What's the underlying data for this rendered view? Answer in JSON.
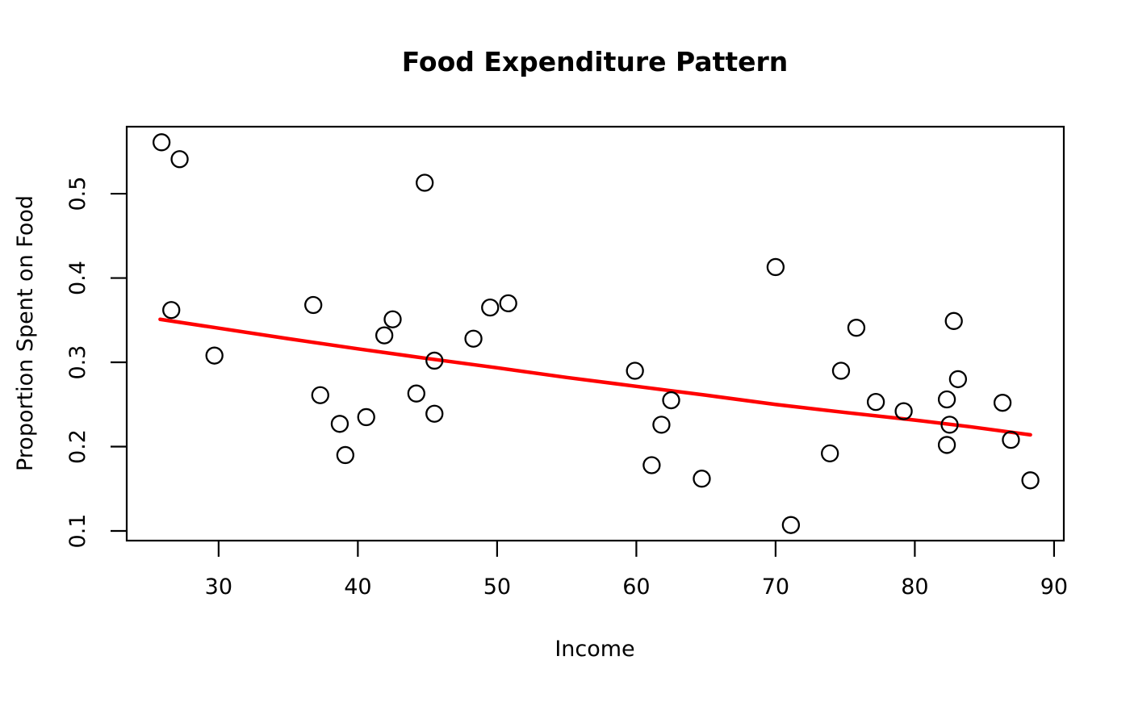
{
  "figure": {
    "background_color": "#FFFFFF",
    "foreground_color": "#000000",
    "accent_color": "#FF0000"
  },
  "chart_data": {
    "type": "scatter",
    "title": "Food Expenditure Pattern",
    "xlabel": "Income",
    "ylabel": "Proportion Spent on Food",
    "xlim": [
      23.4,
      90.7
    ],
    "ylim": [
      0.0885,
      0.5795
    ],
    "x_ticks": [
      30,
      40,
      50,
      60,
      70,
      80,
      90
    ],
    "y_ticks": [
      0.1,
      0.2,
      0.3,
      0.4,
      0.5
    ],
    "grid": false,
    "legend": "none",
    "marker": {
      "shape": "open-circle",
      "stroke_color": "#000000"
    },
    "points": [
      [
        25.9,
        0.561
      ],
      [
        26.6,
        0.362
      ],
      [
        27.2,
        0.541
      ],
      [
        29.7,
        0.308
      ],
      [
        36.8,
        0.368
      ],
      [
        37.3,
        0.261
      ],
      [
        38.7,
        0.227
      ],
      [
        39.1,
        0.19
      ],
      [
        40.6,
        0.235
      ],
      [
        41.9,
        0.332
      ],
      [
        42.5,
        0.351
      ],
      [
        44.2,
        0.263
      ],
      [
        44.8,
        0.513
      ],
      [
        45.5,
        0.302
      ],
      [
        45.5,
        0.239
      ],
      [
        48.3,
        0.328
      ],
      [
        49.5,
        0.365
      ],
      [
        50.8,
        0.37
      ],
      [
        59.9,
        0.29
      ],
      [
        61.1,
        0.178
      ],
      [
        61.8,
        0.226
      ],
      [
        62.5,
        0.255
      ],
      [
        64.7,
        0.162
      ],
      [
        70.0,
        0.413
      ],
      [
        71.1,
        0.107
      ],
      [
        73.9,
        0.192
      ],
      [
        74.7,
        0.29
      ],
      [
        75.8,
        0.341
      ],
      [
        77.2,
        0.253
      ],
      [
        79.2,
        0.242
      ],
      [
        82.3,
        0.256
      ],
      [
        82.3,
        0.202
      ],
      [
        82.5,
        0.226
      ],
      [
        82.8,
        0.349
      ],
      [
        83.1,
        0.28
      ],
      [
        86.3,
        0.252
      ],
      [
        86.9,
        0.208
      ],
      [
        88.3,
        0.16
      ]
    ],
    "trend_line": {
      "name": "smooth-fit",
      "color": "#FF0000",
      "points": [
        [
          25.8,
          0.351
        ],
        [
          30.0,
          0.3405
        ],
        [
          35.0,
          0.328
        ],
        [
          40.0,
          0.316
        ],
        [
          45.0,
          0.3045
        ],
        [
          50.0,
          0.2935
        ],
        [
          55.0,
          0.282
        ],
        [
          60.0,
          0.2715
        ],
        [
          65.0,
          0.261
        ],
        [
          70.0,
          0.25
        ],
        [
          75.0,
          0.2405
        ],
        [
          80.0,
          0.2315
        ],
        [
          84.0,
          0.2235
        ],
        [
          88.3,
          0.214
        ]
      ]
    }
  }
}
